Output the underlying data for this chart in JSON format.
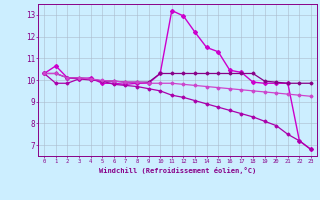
{
  "xlabel": "Windchill (Refroidissement éolien,°C)",
  "xlim": [
    -0.5,
    23.5
  ],
  "ylim": [
    6.5,
    13.5
  ],
  "xticks": [
    0,
    1,
    2,
    3,
    4,
    5,
    6,
    7,
    8,
    9,
    10,
    11,
    12,
    13,
    14,
    15,
    16,
    17,
    18,
    19,
    20,
    21,
    22,
    23
  ],
  "yticks": [
    7,
    8,
    9,
    10,
    11,
    12,
    13
  ],
  "bg_color": "#cceeff",
  "grid_color": "#aabbcc",
  "series": [
    {
      "x": [
        0,
        1,
        2,
        3,
        4,
        5,
        6,
        7,
        8,
        9,
        10,
        11,
        12,
        13,
        14,
        15,
        16,
        17,
        18,
        19,
        20,
        21,
        22,
        23
      ],
      "y": [
        10.3,
        10.65,
        10.1,
        10.05,
        10.1,
        9.85,
        9.85,
        9.8,
        9.85,
        9.85,
        10.3,
        13.2,
        12.95,
        12.2,
        11.5,
        11.3,
        10.45,
        10.35,
        9.9,
        9.85,
        9.85,
        9.85,
        7.2,
        6.8
      ],
      "marker": "D",
      "markersize": 2.0,
      "linewidth": 1.0,
      "color": "#cc00cc"
    },
    {
      "x": [
        0,
        1,
        2,
        3,
        4,
        5,
        6,
        7,
        8,
        9,
        10,
        11,
        12,
        13,
        14,
        15,
        16,
        17,
        18,
        19,
        20,
        21,
        22,
        23
      ],
      "y": [
        10.3,
        10.3,
        10.1,
        10.1,
        10.05,
        9.95,
        9.95,
        9.9,
        9.9,
        9.9,
        10.3,
        10.3,
        10.3,
        10.3,
        10.3,
        10.3,
        10.3,
        10.3,
        10.3,
        9.95,
        9.9,
        9.85,
        9.85,
        9.85
      ],
      "marker": "D",
      "markersize": 1.5,
      "linewidth": 0.9,
      "color": "#880088"
    },
    {
      "x": [
        0,
        1,
        2,
        3,
        4,
        5,
        6,
        7,
        8,
        9,
        10,
        11,
        12,
        13,
        14,
        15,
        16,
        17,
        18,
        19,
        20,
        21,
        22,
        23
      ],
      "y": [
        10.3,
        9.85,
        9.85,
        10.05,
        10.0,
        9.95,
        9.8,
        9.75,
        9.7,
        9.6,
        9.5,
        9.3,
        9.2,
        9.05,
        8.9,
        8.75,
        8.6,
        8.45,
        8.3,
        8.1,
        7.9,
        7.5,
        7.2,
        6.8
      ],
      "marker": "D",
      "markersize": 1.5,
      "linewidth": 0.9,
      "color": "#aa00aa"
    },
    {
      "x": [
        0,
        1,
        2,
        3,
        4,
        5,
        6,
        7,
        8,
        9,
        10,
        11,
        12,
        13,
        14,
        15,
        16,
        17,
        18,
        19,
        20,
        21,
        22,
        23
      ],
      "y": [
        10.3,
        10.3,
        10.1,
        10.1,
        10.05,
        9.98,
        9.95,
        9.9,
        9.9,
        9.85,
        9.85,
        9.85,
        9.8,
        9.75,
        9.7,
        9.65,
        9.6,
        9.55,
        9.5,
        9.45,
        9.4,
        9.35,
        9.3,
        9.25
      ],
      "marker": "D",
      "markersize": 1.5,
      "linewidth": 0.9,
      "color": "#cc44cc"
    }
  ]
}
